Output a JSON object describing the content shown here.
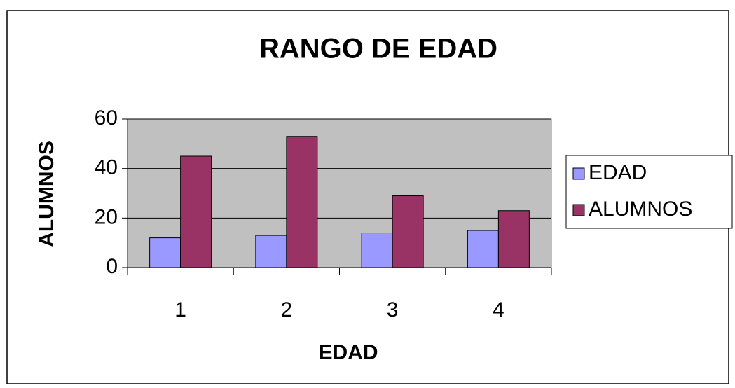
{
  "chart_data": {
    "type": "bar",
    "title": "RANGO DE EDAD",
    "x_label": "EDAD",
    "y_label": "ALUMNOS",
    "categories": [
      "1",
      "2",
      "3",
      "4"
    ],
    "series": [
      {
        "name": "EDAD",
        "color": "#9999ff",
        "values": [
          12,
          13,
          14,
          15
        ]
      },
      {
        "name": "ALUMNOS",
        "color": "#993366",
        "values": [
          45,
          53,
          29,
          23
        ]
      }
    ],
    "ylim": [
      0,
      60
    ],
    "yticks": [
      0,
      20,
      40,
      60
    ],
    "grid": true,
    "legend": "right"
  }
}
